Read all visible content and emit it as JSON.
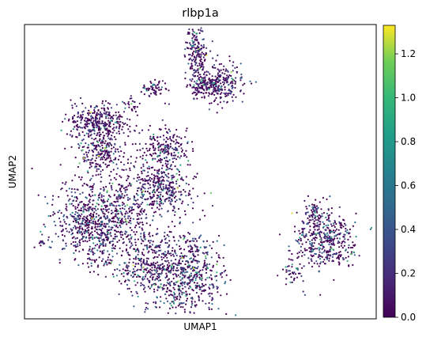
{
  "chart_data": {
    "type": "scatter",
    "title": "rlbp1a",
    "xlabel": "UMAP1",
    "ylabel": "UMAP2",
    "x_ticks": [],
    "y_ticks": [],
    "grid": false,
    "colorbar": {
      "colormap": "viridis",
      "range": [
        0.0,
        1.33
      ],
      "ticks": [
        0.0,
        0.2,
        0.4,
        0.6,
        0.8,
        1.0,
        1.2
      ],
      "tick_labels": [
        "0.0",
        "0.2",
        "0.4",
        "0.6",
        "0.8",
        "1.0",
        "1.2"
      ]
    },
    "colors": {
      "low": "#440154",
      "mid_low": "#3b528b",
      "mid": "#21918c",
      "mid_high": "#5ec962",
      "high": "#fde725"
    },
    "clusters": [
      {
        "cx": 0.49,
        "cy": 0.09,
        "sx": 0.016,
        "sy": 0.045,
        "n": 170,
        "expr": 0.15
      },
      {
        "cx": 0.55,
        "cy": 0.2,
        "sx": 0.036,
        "sy": 0.032,
        "n": 300,
        "expr": 0.18
      },
      {
        "cx": 0.5,
        "cy": 0.21,
        "sx": 0.014,
        "sy": 0.02,
        "n": 60,
        "expr": 0.15
      },
      {
        "cx": 0.37,
        "cy": 0.22,
        "sx": 0.018,
        "sy": 0.014,
        "n": 60,
        "expr": 0.12
      },
      {
        "cx": 0.3,
        "cy": 0.27,
        "sx": 0.012,
        "sy": 0.01,
        "n": 20,
        "expr": 0.12
      },
      {
        "cx": 0.21,
        "cy": 0.33,
        "sx": 0.045,
        "sy": 0.03,
        "n": 330,
        "expr": 0.15
      },
      {
        "cx": 0.22,
        "cy": 0.43,
        "sx": 0.035,
        "sy": 0.035,
        "n": 220,
        "expr": 0.2
      },
      {
        "cx": 0.41,
        "cy": 0.42,
        "sx": 0.028,
        "sy": 0.035,
        "n": 170,
        "expr": 0.12
      },
      {
        "cx": 0.4,
        "cy": 0.55,
        "sx": 0.04,
        "sy": 0.045,
        "n": 280,
        "expr": 0.25
      },
      {
        "cx": 0.2,
        "cy": 0.67,
        "sx": 0.058,
        "sy": 0.07,
        "n": 750,
        "expr": 0.32
      },
      {
        "cx": 0.31,
        "cy": 0.62,
        "sx": 0.028,
        "sy": 0.06,
        "n": 110,
        "expr": 0.22
      },
      {
        "cx": 0.34,
        "cy": 0.82,
        "sx": 0.045,
        "sy": 0.055,
        "n": 260,
        "expr": 0.22
      },
      {
        "cx": 0.45,
        "cy": 0.85,
        "sx": 0.055,
        "sy": 0.075,
        "n": 650,
        "expr": 0.3
      },
      {
        "cx": 0.35,
        "cy": 0.5,
        "sx": 0.03,
        "sy": 0.08,
        "n": 90,
        "expr": 0.15
      },
      {
        "cx": 0.86,
        "cy": 0.73,
        "sx": 0.045,
        "sy": 0.05,
        "n": 420,
        "expr": 0.3
      },
      {
        "cx": 0.82,
        "cy": 0.64,
        "sx": 0.015,
        "sy": 0.022,
        "n": 70,
        "expr": 0.25
      },
      {
        "cx": 0.76,
        "cy": 0.85,
        "sx": 0.016,
        "sy": 0.022,
        "n": 40,
        "expr": 0.15
      },
      {
        "cx": 0.05,
        "cy": 0.74,
        "sx": 0.005,
        "sy": 0.004,
        "n": 12,
        "expr": 0.15
      },
      {
        "cx": 0.24,
        "cy": 0.81,
        "sx": 0.006,
        "sy": 0.005,
        "n": 10,
        "expr": 0.12
      },
      {
        "cx": 0.28,
        "cy": 0.57,
        "sx": 0.01,
        "sy": 0.02,
        "n": 18,
        "expr": 0.2
      }
    ]
  }
}
